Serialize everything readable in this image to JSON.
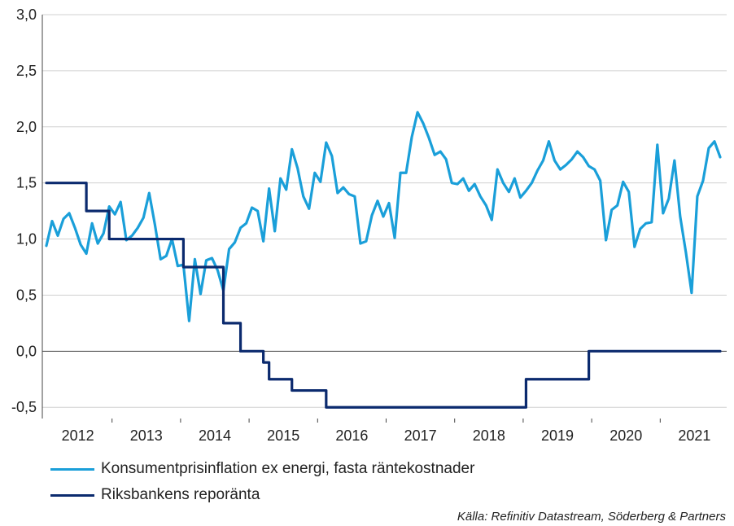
{
  "chart_data": {
    "type": "line",
    "title": "",
    "xlabel": "",
    "ylabel": "",
    "ylim": [
      -0.6,
      3.0
    ],
    "y_ticks": [
      3.0,
      2.5,
      2.0,
      1.5,
      1.0,
      0.5,
      0.0,
      -0.5
    ],
    "y_tick_labels": [
      "3,0",
      "2,5",
      "2,0",
      "1,5",
      "1,0",
      "0,5",
      "0,0",
      "-0,5"
    ],
    "x_tick_labels": [
      "2012",
      "2013",
      "2014",
      "2015",
      "2016",
      "2017",
      "2018",
      "2019",
      "2020",
      "2021"
    ],
    "x_range": [
      "2012-01",
      "2021-12"
    ],
    "grid": "horizontal",
    "legend_position": "bottom",
    "series": [
      {
        "name": "Konsumentprisinflation ex energi, fasta räntekostnader",
        "color": "#1a9fd9",
        "values": [
          0.94,
          1.16,
          1.03,
          1.18,
          1.23,
          1.1,
          0.95,
          0.87,
          1.14,
          0.96,
          1.05,
          1.29,
          1.22,
          1.33,
          0.99,
          1.03,
          1.1,
          1.19,
          1.41,
          1.13,
          0.82,
          0.85,
          1.0,
          0.76,
          0.77,
          0.27,
          0.82,
          0.51,
          0.81,
          0.83,
          0.72,
          0.54,
          0.91,
          0.97,
          1.1,
          1.14,
          1.28,
          1.25,
          0.98,
          1.45,
          1.07,
          1.54,
          1.44,
          1.8,
          1.63,
          1.38,
          1.27,
          1.59,
          1.51,
          1.86,
          1.74,
          1.41,
          1.46,
          1.4,
          1.38,
          0.96,
          0.98,
          1.21,
          1.34,
          1.2,
          1.32,
          1.01,
          1.59,
          1.59,
          1.91,
          2.13,
          2.03,
          1.9,
          1.75,
          1.78,
          1.71,
          1.5,
          1.49,
          1.54,
          1.43,
          1.49,
          1.38,
          1.3,
          1.17,
          1.62,
          1.5,
          1.42,
          1.54,
          1.37,
          1.43,
          1.5,
          1.61,
          1.7,
          1.87,
          1.7,
          1.62,
          1.66,
          1.71,
          1.78,
          1.73,
          1.65,
          1.62,
          1.52,
          0.99,
          1.26,
          1.3,
          1.51,
          1.42,
          0.93,
          1.09,
          1.14,
          1.15,
          1.84,
          1.23,
          1.36,
          1.7,
          1.2,
          0.88,
          0.52,
          1.38,
          1.52,
          1.81,
          1.87,
          1.73
        ]
      },
      {
        "name": "Riksbankens reporänta",
        "color": "#0b2a6e",
        "values": [
          1.5,
          1.5,
          1.5,
          1.5,
          1.5,
          1.5,
          1.5,
          1.25,
          1.25,
          1.25,
          1.25,
          1.0,
          1.0,
          1.0,
          1.0,
          1.0,
          1.0,
          1.0,
          1.0,
          1.0,
          1.0,
          1.0,
          1.0,
          1.0,
          0.75,
          0.75,
          0.75,
          0.75,
          0.75,
          0.75,
          0.75,
          0.25,
          0.25,
          0.25,
          0.0,
          0.0,
          0.0,
          0.0,
          -0.1,
          -0.25,
          -0.25,
          -0.25,
          -0.25,
          -0.35,
          -0.35,
          -0.35,
          -0.35,
          -0.35,
          -0.35,
          -0.5,
          -0.5,
          -0.5,
          -0.5,
          -0.5,
          -0.5,
          -0.5,
          -0.5,
          -0.5,
          -0.5,
          -0.5,
          -0.5,
          -0.5,
          -0.5,
          -0.5,
          -0.5,
          -0.5,
          -0.5,
          -0.5,
          -0.5,
          -0.5,
          -0.5,
          -0.5,
          -0.5,
          -0.5,
          -0.5,
          -0.5,
          -0.5,
          -0.5,
          -0.5,
          -0.5,
          -0.5,
          -0.5,
          -0.5,
          -0.5,
          -0.25,
          -0.25,
          -0.25,
          -0.25,
          -0.25,
          -0.25,
          -0.25,
          -0.25,
          -0.25,
          -0.25,
          -0.25,
          0.0,
          0.0,
          0.0,
          0.0,
          0.0,
          0.0,
          0.0,
          0.0,
          0.0,
          0.0,
          0.0,
          0.0,
          0.0,
          0.0,
          0.0,
          0.0,
          0.0,
          0.0,
          0.0,
          0.0,
          0.0,
          0.0,
          0.0,
          0.0
        ]
      }
    ]
  },
  "source": "Källa: Refinitiv Datastream, Söderberg & Partners"
}
